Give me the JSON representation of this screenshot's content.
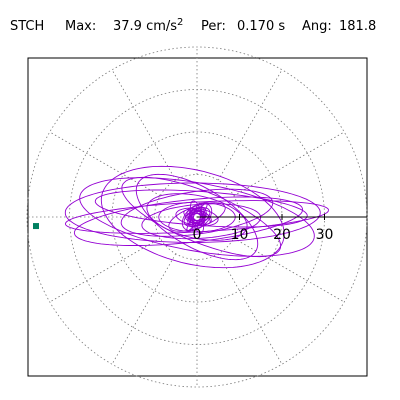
{
  "header": {
    "station": "STCH",
    "max_label": "Max:",
    "max_value": "37.9 cm/s",
    "max_exponent": "2",
    "per_label": "Per:",
    "per_value": "0.170 s",
    "ang_label": "Ang:",
    "ang_value": "181.8"
  },
  "chart_data": {
    "type": "polar",
    "title": "",
    "grid": "polar-dotted",
    "radial_range": [
      0,
      40
    ],
    "radial_ticks": [
      "0",
      "10",
      "20",
      "30"
    ],
    "radial_tick_values": [
      0,
      10,
      20,
      30
    ],
    "angular_gridline_step_deg": 30,
    "max_point_angle_deg": 181.8,
    "max_point_radius": 37.9,
    "orbit_color": "#9400d3",
    "marker_color": "#008060",
    "loops": [
      {
        "a": 31,
        "b": 3.5,
        "rot": 3,
        "cx": 0,
        "cy": 0
      },
      {
        "a": 30,
        "b": 7,
        "rot": 0,
        "cx": -1,
        "cy": 1
      },
      {
        "a": 28,
        "b": 8,
        "rot": -10,
        "cx": 0,
        "cy": 0
      },
      {
        "a": 27,
        "b": 5,
        "rot": 6,
        "cx": -2,
        "cy": -1
      },
      {
        "a": 25,
        "b": 4,
        "rot": -4,
        "cx": 1,
        "cy": 2
      },
      {
        "a": 22,
        "b": 11,
        "rot": -14,
        "cx": -1,
        "cy": 0
      },
      {
        "a": 20,
        "b": 6,
        "rot": -22,
        "cx": 1,
        "cy": 0
      },
      {
        "a": 18,
        "b": 5,
        "rot": 8,
        "cx": 0,
        "cy": 1
      },
      {
        "a": 16,
        "b": 7,
        "rot": -30,
        "cx": 0,
        "cy": 0
      },
      {
        "a": 14,
        "b": 4,
        "rot": 4,
        "cx": 1,
        "cy": -1
      },
      {
        "a": 12,
        "b": 5,
        "rot": -12,
        "cx": 0,
        "cy": 0
      },
      {
        "a": 9,
        "b": 3.5,
        "rot": 0,
        "cx": 0,
        "cy": 0
      },
      {
        "a": 7,
        "b": 2.5,
        "rot": 20,
        "cx": 0,
        "cy": 0
      },
      {
        "a": 5,
        "b": 2,
        "rot": -8,
        "cx": 0,
        "cy": 0
      },
      {
        "a": 4,
        "b": 2.5,
        "rot": 40,
        "cx": 0,
        "cy": 0
      },
      {
        "a": 3,
        "b": 1.5,
        "rot": -20,
        "cx": 0.5,
        "cy": 0
      },
      {
        "a": 2.5,
        "b": 1.2,
        "rot": 60,
        "cx": 0,
        "cy": 0
      },
      {
        "a": 1.5,
        "b": 0.8,
        "rot": 10,
        "cx": 0,
        "cy": 0
      }
    ]
  }
}
